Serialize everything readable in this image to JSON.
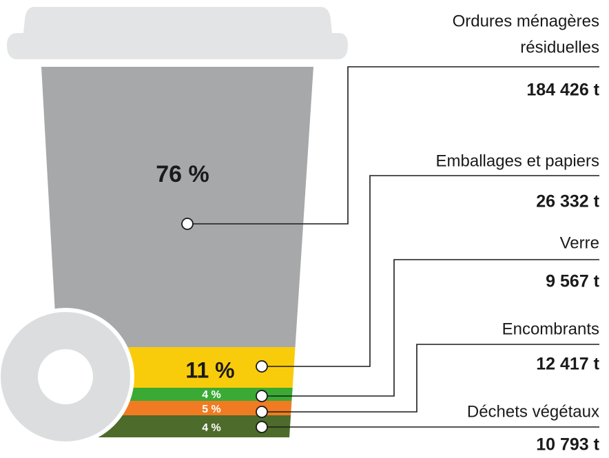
{
  "items": [
    {
      "label": [
        "Ordures ménagères",
        "résiduelles"
      ],
      "tonnage": "184 426 t",
      "share": "76 %"
    },
    {
      "label": [
        "Emballages et papiers"
      ],
      "tonnage": "26 332 t",
      "share": "11 %"
    },
    {
      "label": [
        "Verre"
      ],
      "tonnage": "9 567 t",
      "share": "4 %"
    },
    {
      "label": [
        "Encombrants"
      ],
      "tonnage": "12 417 t",
      "share": "5 %"
    },
    {
      "label": [
        "Déchets végétaux"
      ],
      "tonnage": "10 793 t",
      "share": "4 %"
    }
  ]
}
